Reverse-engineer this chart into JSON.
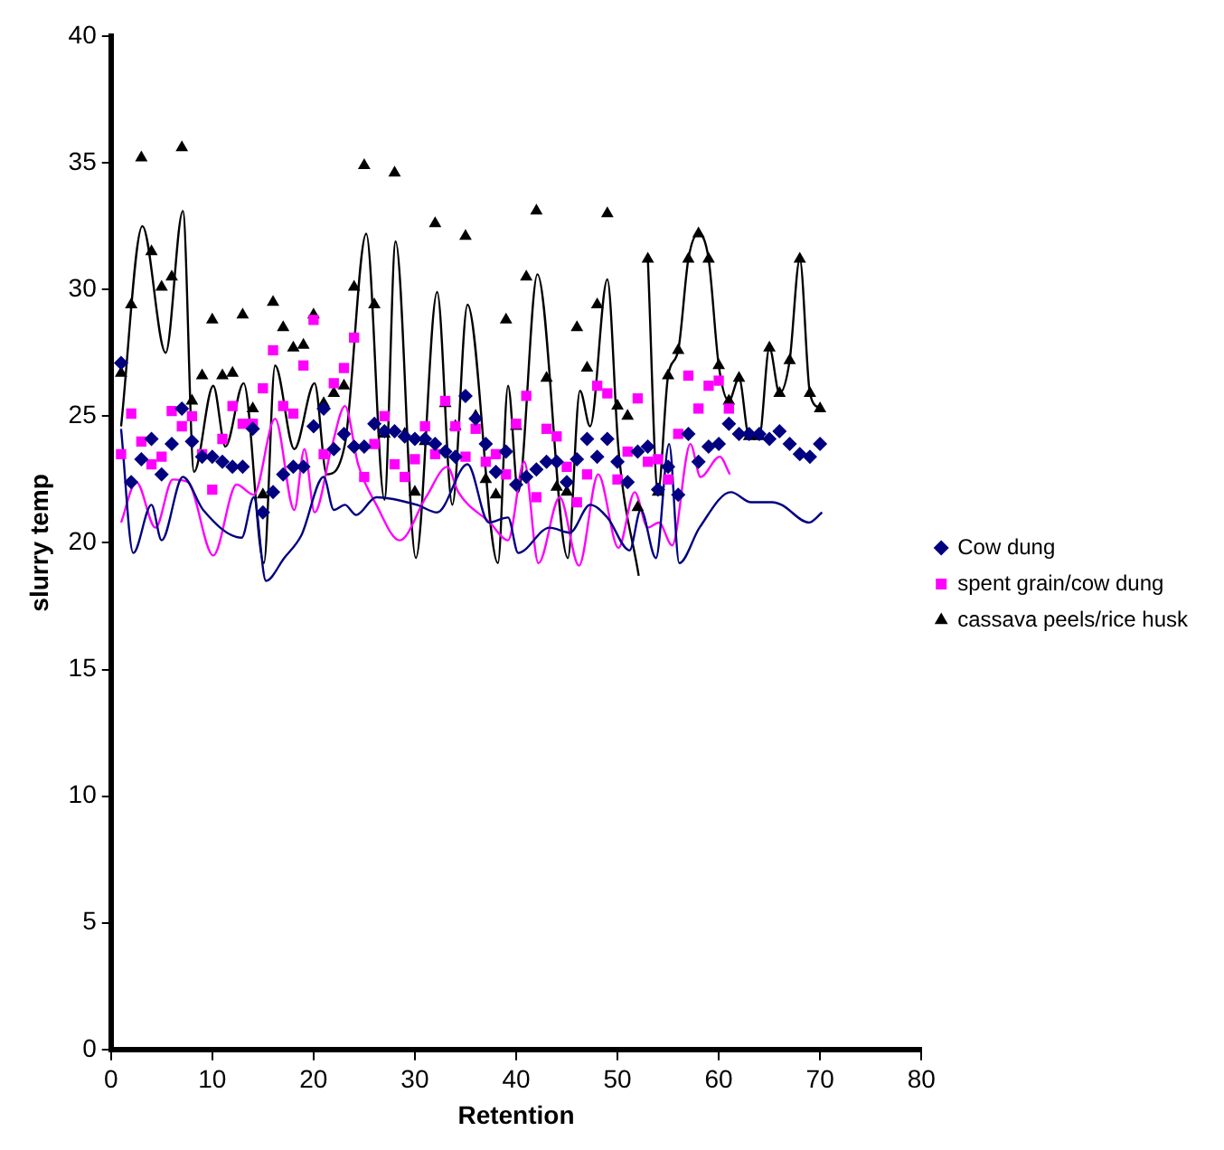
{
  "chart_data": {
    "type": "scatter",
    "xlabel": "Retention",
    "ylabel": "slurry temp",
    "xlim": [
      0,
      80
    ],
    "xticks": [
      0,
      10,
      20,
      30,
      40,
      50,
      60,
      70,
      80
    ],
    "ylim": [
      0,
      40
    ],
    "yticks": [
      0,
      5,
      10,
      15,
      20,
      25,
      30,
      35,
      40
    ],
    "grid": false,
    "legend": "right",
    "series": [
      {
        "name": "Cow dung",
        "type": "scatter",
        "marker": "diamond",
        "color": "#000080",
        "x": [
          1,
          2,
          3,
          4,
          5,
          6,
          7,
          8,
          9,
          10,
          11,
          12,
          13,
          14,
          15,
          16,
          17,
          18,
          19,
          20,
          21,
          22,
          23,
          24,
          25,
          26,
          27,
          28,
          29,
          30,
          31,
          32,
          33,
          34,
          35,
          36,
          37,
          38,
          39,
          40,
          41,
          42,
          43,
          44,
          45,
          46,
          47,
          48,
          49,
          50,
          51,
          52,
          53,
          54,
          55,
          56,
          57,
          58,
          59,
          60,
          61,
          62,
          63,
          64,
          65,
          66,
          67,
          68,
          69,
          70
        ],
        "values": [
          27.1,
          22.4,
          23.3,
          24.1,
          22.7,
          23.9,
          25.3,
          24.0,
          23.4,
          23.4,
          23.2,
          23.0,
          23.0,
          24.5,
          21.2,
          22.0,
          22.7,
          23.0,
          23.0,
          24.6,
          25.3,
          23.7,
          24.3,
          23.8,
          23.8,
          24.7,
          24.4,
          24.4,
          24.2,
          24.1,
          24.1,
          23.9,
          23.6,
          23.4,
          25.8,
          24.9,
          23.9,
          22.8,
          23.6,
          22.3,
          22.6,
          22.9,
          23.2,
          23.2,
          22.4,
          23.3,
          24.1,
          23.4,
          24.1,
          23.2,
          22.4,
          23.6,
          23.8,
          22.1,
          23.0,
          21.9,
          24.3,
          23.2,
          23.8,
          23.9,
          24.7,
          24.3,
          24.3,
          24.3,
          24.1,
          24.4,
          23.9,
          23.5,
          23.4,
          23.9
        ]
      },
      {
        "name": "spent grain/cow dung",
        "type": "scatter",
        "marker": "square",
        "color": "#ff00ff",
        "x": [
          1,
          2,
          3,
          4,
          5,
          6,
          7,
          8,
          9,
          10,
          11,
          12,
          13,
          14,
          15,
          16,
          17,
          18,
          19,
          20,
          21,
          22,
          23,
          24,
          25,
          26,
          27,
          28,
          29,
          30,
          31,
          32,
          33,
          34,
          35,
          36,
          37,
          38,
          39,
          40,
          41,
          42,
          43,
          44,
          45,
          46,
          47,
          48,
          49,
          50,
          51,
          52,
          53,
          54,
          55,
          56,
          57,
          58,
          59,
          60,
          61
        ],
        "values": [
          23.5,
          25.1,
          24.0,
          23.1,
          23.4,
          25.2,
          24.6,
          25.0,
          23.5,
          22.1,
          24.1,
          25.4,
          24.7,
          24.7,
          26.1,
          27.6,
          25.4,
          25.1,
          27.0,
          28.8,
          23.5,
          26.3,
          26.9,
          28.1,
          22.6,
          23.9,
          25.0,
          23.1,
          22.6,
          23.3,
          24.6,
          23.5,
          25.6,
          24.6,
          23.4,
          24.5,
          23.2,
          23.5,
          22.7,
          24.7,
          25.8,
          21.8,
          24.5,
          24.2,
          23.0,
          21.6,
          22.7,
          26.2,
          25.9,
          22.5,
          23.6,
          25.7,
          23.2,
          23.3,
          22.5,
          24.3,
          26.6,
          25.3,
          26.2,
          26.4,
          25.3
        ]
      },
      {
        "name": "cassava peels/rice husk",
        "type": "scatter",
        "marker": "triangle",
        "color": "#000000",
        "x": [
          1,
          2,
          3,
          4,
          5,
          6,
          7,
          8,
          9,
          10,
          11,
          12,
          13,
          14,
          15,
          16,
          17,
          18,
          19,
          20,
          21,
          22,
          23,
          24,
          25,
          26,
          27,
          28,
          29,
          30,
          31,
          32,
          33,
          34,
          35,
          36,
          37,
          38,
          39,
          40,
          41,
          42,
          43,
          44,
          45,
          46,
          47,
          48,
          49,
          50,
          51,
          52,
          53,
          54,
          55,
          56,
          57,
          58,
          59,
          60,
          61,
          62,
          63,
          64,
          65,
          66,
          67,
          68,
          69,
          70
        ],
        "values": [
          26.7,
          29.4,
          35.2,
          31.5,
          30.1,
          30.5,
          35.6,
          25.6,
          26.6,
          28.8,
          26.6,
          26.7,
          29.0,
          25.3,
          21.9,
          29.5,
          28.5,
          27.7,
          27.8,
          29.0,
          25.5,
          25.9,
          26.2,
          30.1,
          34.9,
          29.4,
          24.3,
          34.6,
          24.3,
          22.0,
          24.0,
          32.6,
          25.5,
          24.6,
          32.1,
          25.0,
          22.5,
          21.9,
          28.8,
          24.6,
          30.5,
          33.1,
          26.5,
          22.2,
          22.0,
          28.5,
          26.9,
          29.4,
          33.0,
          25.4,
          25.0,
          21.4,
          31.2,
          22.0,
          26.6,
          27.6,
          31.2,
          32.2,
          31.2,
          27.0,
          25.6,
          26.5,
          24.2,
          24.2,
          27.7,
          25.9,
          27.2,
          31.2,
          25.9,
          25.3
        ]
      },
      {
        "type": "line",
        "marker": "none",
        "color": "#000080",
        "x": [
          1,
          2.2,
          4,
          5,
          7.1,
          9.1,
          12.9,
          14.1,
          15.3,
          17.1,
          18.8,
          21,
          22,
          23.1,
          24.2,
          26.2,
          30.2,
          32.2,
          35.2,
          37.3,
          39.2,
          40.2,
          43.3,
          45.3,
          47.3,
          49,
          51.2,
          52.3,
          53.8,
          55.1,
          56.1,
          58.1,
          61.2,
          63.2,
          65.3,
          66.2,
          68.9,
          70.2
        ],
        "values": [
          24.5,
          19.6,
          21.5,
          20.1,
          22.6,
          21.3,
          20.2,
          21.8,
          18.5,
          19.4,
          20.3,
          22.6,
          21.3,
          21.5,
          21.1,
          21.8,
          21.5,
          21.2,
          23.1,
          20.8,
          21.0,
          19.6,
          20.6,
          20.4,
          21.5,
          21.0,
          19.7,
          21.3,
          19.4,
          23.9,
          19.2,
          20.6,
          22.0,
          21.6,
          21.6,
          21.5,
          20.8,
          21.2
        ]
      },
      {
        "type": "line",
        "marker": "none",
        "color": "#ff00ff",
        "x": [
          1,
          2.5,
          4.4,
          6.1,
          7.6,
          10.1,
          12.4,
          14.1,
          16.2,
          18.1,
          19.1,
          20.1,
          21.8,
          23.1,
          24.4,
          26.2,
          28.5,
          31.1,
          33.2,
          34.3,
          37.4,
          39.2,
          40.8,
          42.2,
          44.3,
          46.2,
          48.1,
          50.1,
          51.7,
          53,
          54.1,
          55.4,
          57.2,
          58.2,
          60.1,
          61.1
        ],
        "values": [
          20.8,
          22.4,
          20.6,
          22.5,
          22.4,
          19.5,
          22.3,
          21.9,
          24.9,
          21.3,
          23.7,
          21.2,
          23.8,
          25.4,
          23.1,
          21.5,
          20.1,
          21.8,
          23.0,
          22.0,
          20.8,
          20.1,
          23.2,
          19.2,
          21.8,
          19.1,
          22.7,
          19.8,
          22.0,
          20.6,
          20.8,
          19.9,
          23.9,
          22.6,
          23.4,
          22.7
        ]
      },
      {
        "type": "line",
        "marker": "none",
        "color": "#000000",
        "x": [
          1,
          3.1,
          5.4,
          7.1,
          8.2,
          10.1,
          11.3,
          13.1,
          15.1,
          16.2,
          18.1,
          20.1,
          21.3,
          23.1,
          25.2,
          27,
          28.1,
          30.1,
          32.2,
          33.7,
          35.2,
          38.2,
          39.2,
          40.2,
          42.1,
          45.1,
          46.3,
          47.3,
          49,
          50.1,
          52.1
        ],
        "values": [
          24.6,
          32.5,
          27.5,
          33.1,
          22.8,
          26.2,
          23.8,
          26.3,
          19.2,
          27.0,
          23.7,
          26.3,
          22.7,
          23.9,
          32.2,
          21.7,
          31.9,
          19.4,
          29.9,
          21.5,
          29.4,
          19.2,
          26.2,
          22.0,
          30.6,
          19.4,
          26.0,
          24.6,
          30.4,
          23.7,
          18.7
        ]
      },
      {
        "type": "line",
        "marker": "none",
        "color": "#000000",
        "x": [
          53,
          54,
          55,
          56,
          57,
          58,
          59,
          60,
          61,
          62,
          63,
          64,
          65,
          66,
          67,
          68,
          69,
          70
        ],
        "values": [
          31.2,
          22.0,
          26.6,
          27.6,
          31.2,
          32.2,
          31.2,
          27.0,
          25.6,
          26.5,
          24.2,
          24.2,
          27.7,
          25.9,
          27.2,
          31.2,
          25.9,
          25.3
        ]
      }
    ]
  }
}
